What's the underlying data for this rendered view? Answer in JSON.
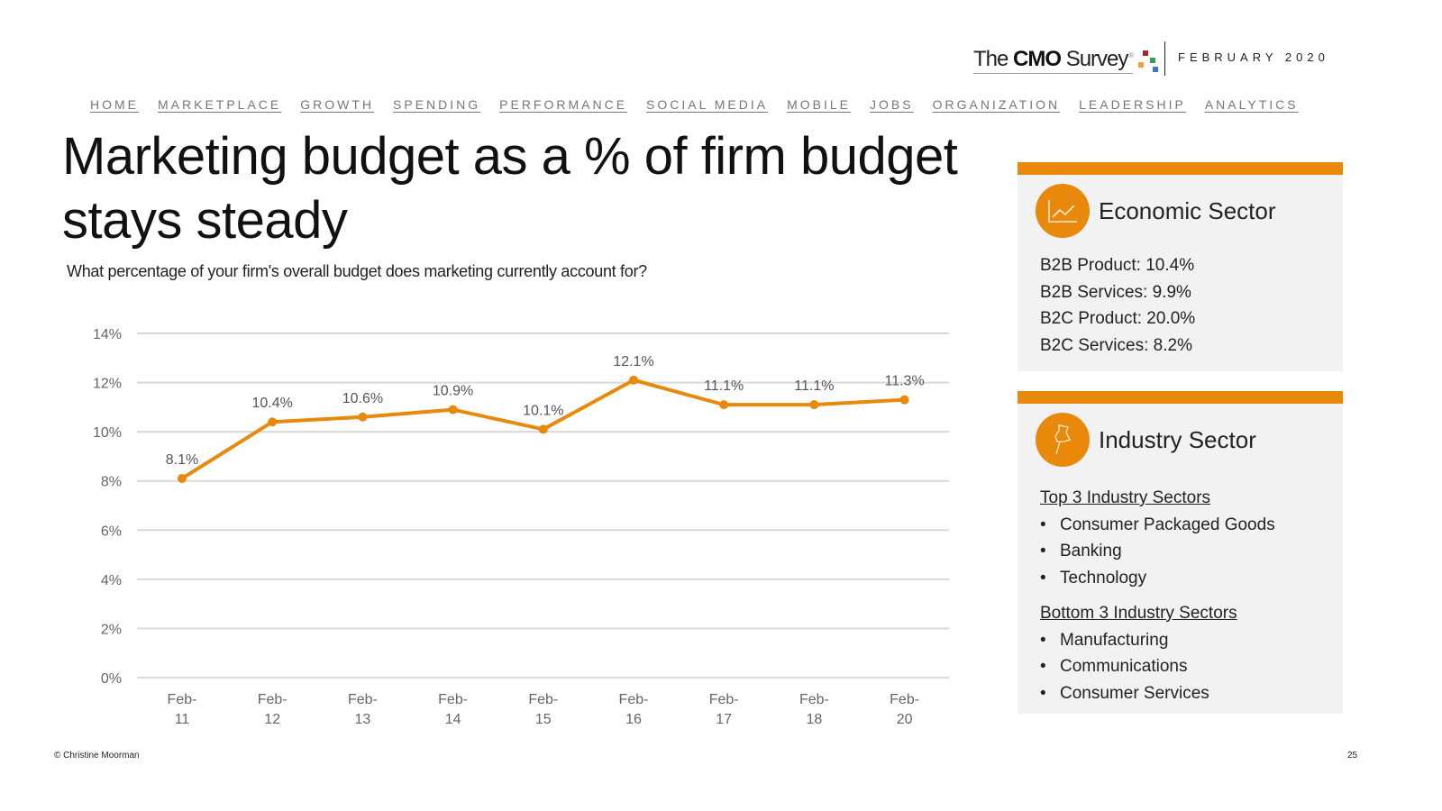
{
  "header": {
    "logo": {
      "pre": "The ",
      "bold": "CMO",
      "post": " Survey",
      "reg": "®"
    },
    "date": "FEBRUARY 2020"
  },
  "nav": [
    "HOME",
    "MARKETPLACE",
    "GROWTH",
    "SPENDING",
    "PERFORMANCE",
    "SOCIAL MEDIA",
    "MOBILE",
    "JOBS",
    "ORGANIZATION",
    "LEADERSHIP",
    "ANALYTICS"
  ],
  "title": "Marketing budget as a % of firm budget stays steady",
  "question": "What percentage of your firm's overall budget does marketing currently account for?",
  "colors": {
    "accent": "#e8890c",
    "grid": "#d9d9d9",
    "panel_bg": "#f2f2f2"
  },
  "chart_data": {
    "type": "line",
    "title": "",
    "xlabel": "",
    "ylabel": "",
    "categories": [
      [
        "Feb-",
        "11"
      ],
      [
        "Feb-",
        "12"
      ],
      [
        "Feb-",
        "13"
      ],
      [
        "Feb-",
        "14"
      ],
      [
        "Feb-",
        "15"
      ],
      [
        "Feb-",
        "16"
      ],
      [
        "Feb-",
        "17"
      ],
      [
        "Feb-",
        "18"
      ],
      [
        "Feb-",
        "20"
      ]
    ],
    "series": [
      {
        "name": "Marketing budget % of firm budget",
        "values": [
          8.1,
          10.4,
          10.6,
          10.9,
          10.1,
          12.1,
          11.1,
          11.1,
          11.3
        ],
        "labels": [
          "8.1%",
          "10.4%",
          "10.6%",
          "10.9%",
          "10.1%",
          "12.1%",
          "11.1%",
          "11.1%",
          "11.3%"
        ]
      }
    ],
    "ylim": [
      0,
      14
    ],
    "yticks": [
      0,
      2,
      4,
      6,
      8,
      10,
      12,
      14
    ],
    "ytick_labels": [
      "0%",
      "2%",
      "4%",
      "6%",
      "8%",
      "10%",
      "12%",
      "14%"
    ],
    "grid": true,
    "legend": "none"
  },
  "economic": {
    "title": "Economic Sector",
    "icon": "line-chart-icon",
    "items": [
      "B2B Product: 10.4%",
      "B2B Services: 9.9%",
      "B2C Product: 20.0%",
      "B2C Services: 8.2%"
    ]
  },
  "industry": {
    "title": "Industry Sector",
    "icon": "pushpin-icon",
    "top_heading": "Top 3 Industry Sectors",
    "top": [
      "Consumer Packaged Goods",
      "Banking",
      "Technology"
    ],
    "bottom_heading": "Bottom 3 Industry Sectors",
    "bottom": [
      "Manufacturing",
      "Communications",
      "Consumer Services"
    ],
    "bullet": "•"
  },
  "footer": {
    "copyright": "© Christine Moorman",
    "page": "25"
  }
}
